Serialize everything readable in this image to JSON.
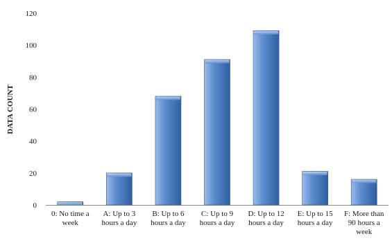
{
  "chart_data": {
    "type": "bar",
    "title": "",
    "xlabel": "",
    "ylabel": "DATA COUNT",
    "ylim": [
      0,
      120
    ],
    "yticks": [
      0,
      20,
      40,
      60,
      80,
      100,
      120
    ],
    "categories": [
      "0: No time a week",
      "A: Up to 3 hours a day",
      "B: Up to 6 hours a day",
      "C: Up to 9 hours a day",
      "D: Up to 12 hours a day",
      "E: Up to 15 hours a day",
      "F: More than 90 hours a week"
    ],
    "category_label_lines": [
      [
        "0: No time a",
        "week"
      ],
      [
        "A: Up to 3",
        "hours a day"
      ],
      [
        "B: Up to 6",
        "hours a day"
      ],
      [
        "C: Up to 9",
        "hours a day"
      ],
      [
        "D: Up to 12",
        "hours a day"
      ],
      [
        "E: Up to 15",
        "hours a day"
      ],
      [
        "F: More than",
        "90 hours a",
        "week"
      ]
    ],
    "values": [
      2,
      20,
      68,
      91,
      109,
      21,
      16
    ],
    "grid": false,
    "legend": "none",
    "colors": {
      "bar_light": "#9cbde8",
      "bar_mid": "#5f8ed1",
      "bar_dark": "#2f5f9f",
      "axis": "#8c8c8c"
    }
  }
}
